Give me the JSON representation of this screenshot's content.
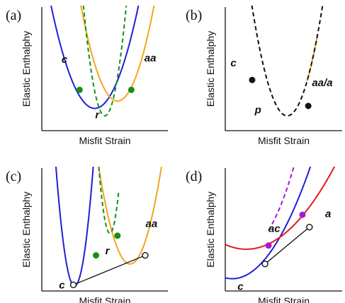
{
  "colors": {
    "blue": "#1f1fd6",
    "orange": "#f2a71b",
    "green": "#159015",
    "red": "#e01a1a",
    "purple": "#a21ad0",
    "black": "#111111"
  },
  "chart_data": [
    {
      "type": "line",
      "panel_label": "(a)",
      "xlabel": "Misfit Strain",
      "ylabel": "Elastic Enthalphy",
      "grid": false,
      "series": [
        {
          "name": "c",
          "color": "blue",
          "dash": false,
          "center": 0.42,
          "width": 0.38,
          "y_min": 0.18,
          "x_range": [
            0.06,
            0.98
          ]
        },
        {
          "name": "aa",
          "color": "orange",
          "dash": false,
          "center": 0.6,
          "width": 0.33,
          "y_min": 0.24,
          "x_range": [
            0.06,
            0.98
          ]
        },
        {
          "name": "r",
          "color": "green",
          "dash": true,
          "center": 0.5,
          "width": 0.18,
          "y_min": 0.12,
          "x_range": [
            0.3,
            0.71
          ]
        }
      ],
      "points": [
        {
          "x": 0.3,
          "y": 0.33,
          "color": "green",
          "fill": "solid"
        },
        {
          "x": 0.71,
          "y": 0.33,
          "color": "green",
          "fill": "solid"
        }
      ],
      "tangents": [],
      "labels": [
        {
          "text": "c",
          "x": 0.18,
          "y": 0.55
        },
        {
          "text": "aa",
          "x": 0.86,
          "y": 0.56
        },
        {
          "text": "r",
          "x": 0.44,
          "y": 0.1
        }
      ]
    },
    {
      "type": "line",
      "panel_label": "(b)",
      "xlabel": "Misfit Strain",
      "ylabel": "Elastic Enthalphy",
      "grid": false,
      "series": [
        {
          "name": "c",
          "color": "blue",
          "dash": false,
          "center": 0.53,
          "width": 0.32,
          "y_min": 0.12,
          "x_range": [
            0.02,
            0.23
          ]
        },
        {
          "name": "aa/a",
          "color": "orange",
          "dash": false,
          "center": 0.53,
          "width": 0.32,
          "y_min": 0.12,
          "x_range": [
            0.7,
            0.79
          ]
        },
        {
          "name": "p",
          "color": "black",
          "dash": true,
          "center": 0.53,
          "width": 0.32,
          "y_min": 0.12,
          "x_range": [
            0.02,
            0.99
          ]
        }
      ],
      "points": [
        {
          "x": 0.23,
          "y": 0.41,
          "color": "black",
          "fill": "solid"
        },
        {
          "x": 0.71,
          "y": 0.2,
          "color": "black",
          "fill": "solid"
        }
      ],
      "tangents": [],
      "labels": [
        {
          "text": "c",
          "x": 0.07,
          "y": 0.52
        },
        {
          "text": "p",
          "x": 0.28,
          "y": 0.14
        },
        {
          "text": "aa/a",
          "x": 0.83,
          "y": 0.36
        }
      ]
    },
    {
      "type": "line",
      "panel_label": "(c)",
      "xlabel": "Misfit Strain",
      "ylabel": "Elastic Enthalphy",
      "grid": false,
      "series": [
        {
          "name": "c",
          "color": "blue",
          "dash": false,
          "center": 0.26,
          "width": 0.15,
          "y_min": 0.04,
          "x_range": [
            -0.02,
            0.6
          ]
        },
        {
          "name": "aa",
          "color": "orange",
          "dash": false,
          "center": 0.7,
          "width": 0.28,
          "y_min": 0.22,
          "x_range": [
            0.25,
            1.02
          ]
        },
        {
          "name": "r",
          "color": "green",
          "dash": true,
          "center": 0.54,
          "width": 0.12,
          "y_min": 0.47,
          "x_range": [
            0.42,
            0.61
          ]
        }
      ],
      "points": [
        {
          "x": 0.25,
          "y": 0.05,
          "color": "black",
          "fill": "hollow"
        },
        {
          "x": 0.82,
          "y": 0.29,
          "color": "black",
          "fill": "hollow"
        },
        {
          "x": 0.43,
          "y": 0.29,
          "color": "green",
          "fill": "solid"
        },
        {
          "x": 0.6,
          "y": 0.45,
          "color": "green",
          "fill": "solid"
        }
      ],
      "tangents": [
        {
          "from": [
            0.25,
            0.05
          ],
          "to": [
            0.82,
            0.29
          ],
          "color": "black"
        }
      ],
      "labels": [
        {
          "text": "c",
          "x": 0.16,
          "y": 0.02
        },
        {
          "text": "r",
          "x": 0.52,
          "y": 0.3
        },
        {
          "text": "aa",
          "x": 0.87,
          "y": 0.52
        }
      ]
    },
    {
      "type": "line",
      "panel_label": "(d)",
      "xlabel": "Misfit Strain",
      "ylabel": "Elastic Enthalphy",
      "grid": false,
      "series": [
        {
          "name": "c",
          "color": "blue",
          "dash": false,
          "center": 0.06,
          "width": 0.7,
          "y_min": 0.1,
          "x_range": [
            0.0,
            0.88
          ]
        },
        {
          "name": "a",
          "color": "red",
          "dash": false,
          "center": 0.18,
          "width": 0.92,
          "y_min": 0.34,
          "x_range": [
            0.0,
            1.02
          ]
        },
        {
          "name": "ac",
          "color": "purple",
          "dash": true,
          "center": 0.18,
          "width": 0.5,
          "y_min": 0.35,
          "x_range": [
            0.37,
            0.66
          ]
        }
      ],
      "points": [
        {
          "x": 0.34,
          "y": 0.22,
          "color": "black",
          "fill": "hollow"
        },
        {
          "x": 0.72,
          "y": 0.52,
          "color": "black",
          "fill": "hollow"
        },
        {
          "x": 0.37,
          "y": 0.37,
          "color": "purple",
          "fill": "solid"
        },
        {
          "x": 0.66,
          "y": 0.62,
          "color": "purple",
          "fill": "solid"
        }
      ],
      "tangents": [
        {
          "from": [
            0.34,
            0.22
          ],
          "to": [
            0.72,
            0.52
          ],
          "color": "black"
        }
      ],
      "labels": [
        {
          "text": "ac",
          "x": 0.42,
          "y": 0.48
        },
        {
          "text": "a",
          "x": 0.88,
          "y": 0.6
        },
        {
          "text": "c",
          "x": 0.13,
          "y": 0.01
        }
      ]
    }
  ]
}
